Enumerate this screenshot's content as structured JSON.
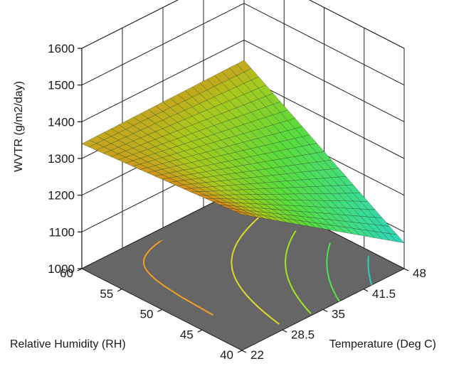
{
  "chart_data": {
    "type": "surface3d",
    "zlabel": "WVTR (g/m2/day)",
    "xlabel": "Relative Humidity (RH)",
    "ylabel": "Temperature (Deg C)",
    "z_ticks": [
      "1000",
      "1100",
      "1200",
      "1300",
      "1400",
      "1500",
      "1600"
    ],
    "x_ticks": [
      "40",
      "45",
      "50",
      "55",
      "60"
    ],
    "y_ticks": [
      "22",
      "28.5",
      "35",
      "41.5",
      "48"
    ],
    "zlim": [
      1000,
      1600
    ],
    "xlim": [
      40,
      60
    ],
    "ylim": [
      22,
      48
    ],
    "grid": true,
    "corner_values": [
      {
        "rh": 40,
        "temp": 22,
        "wvtr": 1370
      },
      {
        "rh": 60,
        "temp": 22,
        "wvtr": 1340
      },
      {
        "rh": 40,
        "temp": 48,
        "wvtr": 1070
      },
      {
        "rh": 60,
        "temp": 48,
        "wvtr": 1345
      }
    ],
    "floor_color": "#666666",
    "contour_colors": [
      "#f0a020",
      "#dcdc28",
      "#9ee61e",
      "#4ee650",
      "#28d2b4"
    ]
  }
}
